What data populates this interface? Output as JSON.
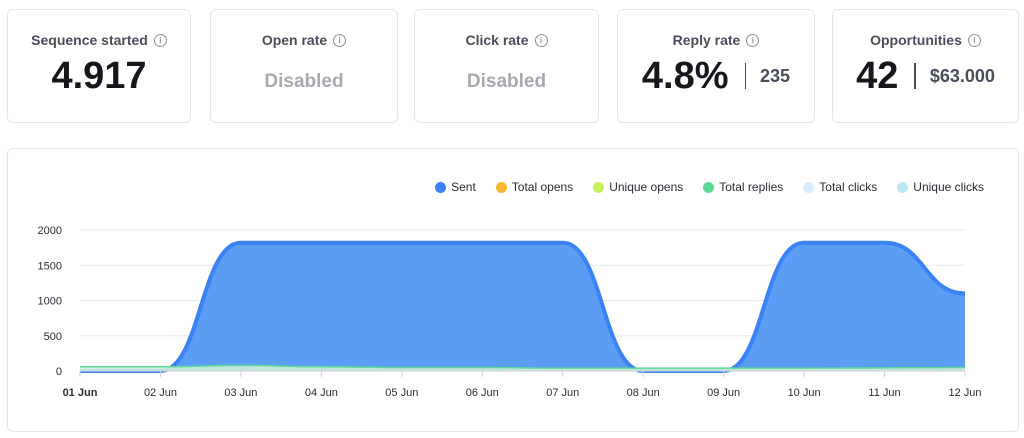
{
  "cards": [
    {
      "title": "Sequence started",
      "value": "4.917",
      "secondary": ""
    },
    {
      "title": "Open rate",
      "value": "Disabled",
      "secondary": ""
    },
    {
      "title": "Click rate",
      "value": "Disabled",
      "secondary": ""
    },
    {
      "title": "Reply rate",
      "value": "4.8%",
      "secondary": "235"
    },
    {
      "title": "Opportunities",
      "value": "42",
      "secondary": "$63.000"
    }
  ],
  "colors": {
    "sent": "#3b82f6",
    "sent_fill": "#5b9cf5",
    "total_opens": "#f7b731",
    "unique_opens": "#c8f25b",
    "total_replies": "#5ed995",
    "total_clicks": "#d8ecfb",
    "unique_clicks": "#bfe8f5"
  },
  "chart_data": {
    "type": "area",
    "title": "",
    "xlabel": "",
    "ylabel": "",
    "ylim": [
      0,
      2000
    ],
    "yticks": [
      "0",
      "500",
      "1000",
      "1500",
      "2000"
    ],
    "grid": true,
    "legend_position": "top-right",
    "categories": [
      "01 Jun",
      "02 Jun",
      "03 Jun",
      "04 Jun",
      "05 Jun",
      "06 Jun",
      "07 Jun",
      "08 Jun",
      "09 Jun",
      "10 Jun",
      "11 Jun",
      "12 Jun"
    ],
    "series": [
      {
        "name": "Sent",
        "values": [
          0,
          0,
          1820,
          1820,
          1820,
          1820,
          1820,
          0,
          0,
          1820,
          1820,
          1100
        ]
      },
      {
        "name": "Total opens",
        "values": [
          0,
          0,
          0,
          0,
          0,
          0,
          0,
          0,
          0,
          0,
          0,
          0
        ]
      },
      {
        "name": "Unique opens",
        "values": [
          0,
          0,
          0,
          0,
          0,
          0,
          0,
          0,
          0,
          0,
          0,
          0
        ]
      },
      {
        "name": "Total replies",
        "values": [
          60,
          60,
          80,
          60,
          50,
          50,
          40,
          40,
          40,
          40,
          45,
          50
        ]
      },
      {
        "name": "Total clicks",
        "values": [
          0,
          0,
          0,
          0,
          0,
          0,
          0,
          0,
          0,
          0,
          0,
          0
        ]
      },
      {
        "name": "Unique clicks",
        "values": [
          0,
          0,
          0,
          0,
          0,
          0,
          0,
          0,
          0,
          0,
          0,
          0
        ]
      }
    ]
  }
}
